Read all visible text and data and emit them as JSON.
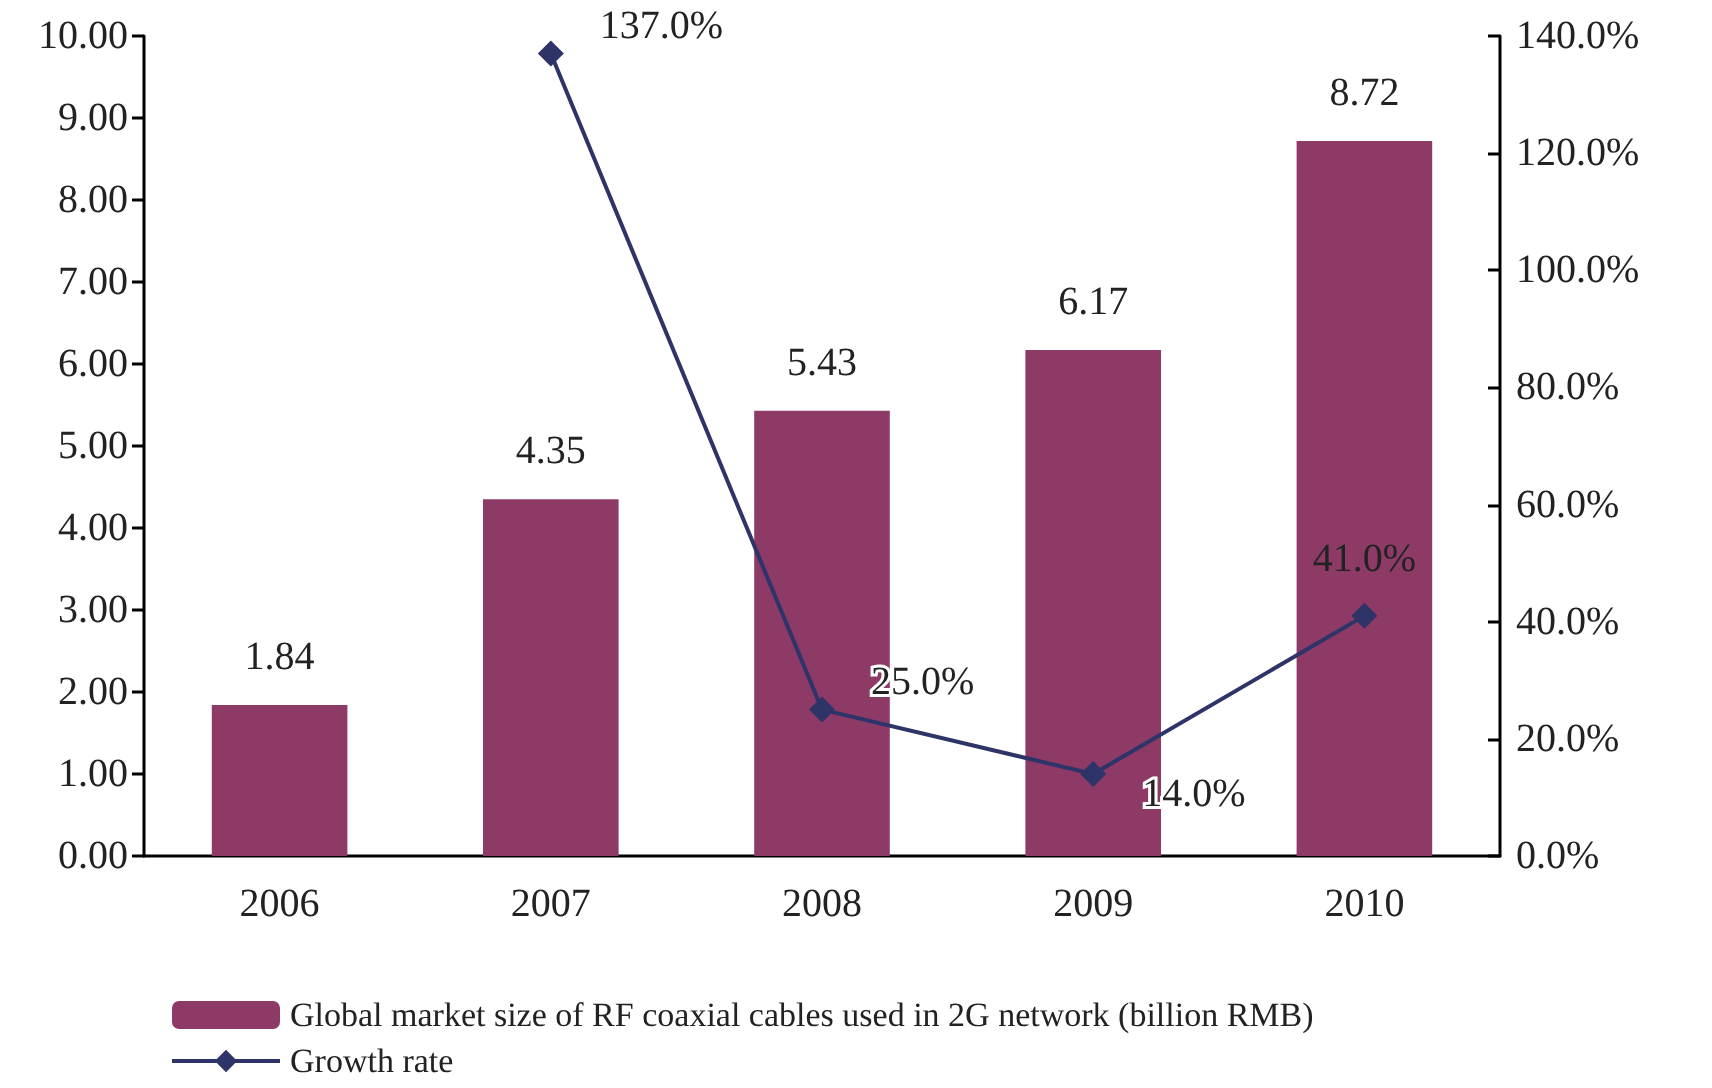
{
  "chart_data": {
    "type": "bar",
    "categories": [
      "2006",
      "2007",
      "2008",
      "2009",
      "2010"
    ],
    "series": [
      {
        "name": "Global market size of RF coaxial cables used in 2G network (billion RMB)",
        "color": "#8e3a66",
        "values": [
          1.84,
          4.35,
          5.43,
          6.17,
          8.72
        ],
        "value_labels": [
          "1.84",
          "4.35",
          "5.43",
          "6.17",
          "8.72"
        ]
      },
      {
        "name": "Growth rate",
        "type": "line",
        "axis": "y2",
        "color": "#2e3368",
        "values": [
          null,
          137.0,
          25.0,
          14.0,
          41.0
        ],
        "value_labels": [
          null,
          "137.0%",
          "25.0%",
          "14.0%",
          "41.0%"
        ],
        "marker": "diamond",
        "line_style": "solid"
      }
    ],
    "ylim": [
      0,
      10
    ],
    "yticks": [
      {
        "value": 0,
        "label": "0.00"
      },
      {
        "value": 1,
        "label": "1.00"
      },
      {
        "value": 2,
        "label": "2.00"
      },
      {
        "value": 3,
        "label": "3.00"
      },
      {
        "value": 4,
        "label": "4.00"
      },
      {
        "value": 5,
        "label": "5.00"
      },
      {
        "value": 6,
        "label": "6.00"
      },
      {
        "value": 7,
        "label": "7.00"
      },
      {
        "value": 8,
        "label": "8.00"
      },
      {
        "value": 9,
        "label": "9.00"
      },
      {
        "value": 10,
        "label": "10.00"
      }
    ],
    "y2lim": [
      0,
      140
    ],
    "y2ticks": [
      {
        "value": 0,
        "label": "0.0%"
      },
      {
        "value": 20,
        "label": "20.0%"
      },
      {
        "value": 40,
        "label": "40.0%"
      },
      {
        "value": 60,
        "label": "60.0%"
      },
      {
        "value": 80,
        "label": "80.0%"
      },
      {
        "value": 100,
        "label": "100.0%"
      },
      {
        "value": 120,
        "label": "120.0%"
      },
      {
        "value": 140,
        "label": "140.0%"
      }
    ],
    "grid": false,
    "legend": "bottom left"
  }
}
